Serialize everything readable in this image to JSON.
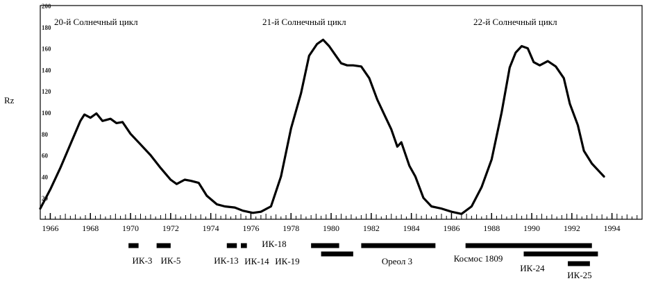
{
  "chart_data": {
    "type": "line",
    "title": "",
    "xlabel": "",
    "ylabel": "Rz",
    "xlim": [
      1965.5,
      1995.5
    ],
    "ylim": [
      0,
      200
    ],
    "grid": false,
    "x_ticks": [
      1966,
      1968,
      1970,
      1972,
      1974,
      1976,
      1978,
      1980,
      1982,
      1984,
      1986,
      1988,
      1990,
      1992,
      1994
    ],
    "y_ticks": [
      20,
      40,
      60,
      80,
      100,
      120,
      140,
      160,
      180,
      200
    ],
    "annotations": [
      {
        "text": "20-й Солнечный цикл",
        "x": 1967
      },
      {
        "text": "21-й Солнечный цикл",
        "x": 1977.5
      },
      {
        "text": "22-й Солнечный цикл",
        "x": 1987.5
      }
    ],
    "series": [
      {
        "points": [
          [
            1965.5,
            10
          ],
          [
            1966.0,
            28
          ],
          [
            1966.5,
            48
          ],
          [
            1967.0,
            70
          ],
          [
            1967.5,
            92
          ],
          [
            1967.7,
            98
          ],
          [
            1968.0,
            95
          ],
          [
            1968.3,
            99
          ],
          [
            1968.6,
            92
          ],
          [
            1969.0,
            94
          ],
          [
            1969.3,
            90
          ],
          [
            1969.6,
            91
          ],
          [
            1970.0,
            80
          ],
          [
            1970.5,
            70
          ],
          [
            1971.0,
            60
          ],
          [
            1971.5,
            48
          ],
          [
            1972.0,
            37
          ],
          [
            1972.3,
            33
          ],
          [
            1972.7,
            37
          ],
          [
            1973.0,
            36
          ],
          [
            1973.4,
            34
          ],
          [
            1973.8,
            22
          ],
          [
            1974.3,
            14
          ],
          [
            1974.7,
            12
          ],
          [
            1975.2,
            11
          ],
          [
            1975.6,
            8
          ],
          [
            1976.1,
            6
          ],
          [
            1976.5,
            7
          ],
          [
            1977.0,
            12
          ],
          [
            1977.5,
            40
          ],
          [
            1978.0,
            85
          ],
          [
            1978.5,
            118
          ],
          [
            1978.9,
            153
          ],
          [
            1979.3,
            164
          ],
          [
            1979.6,
            168
          ],
          [
            1979.9,
            162
          ],
          [
            1980.2,
            154
          ],
          [
            1980.5,
            146
          ],
          [
            1980.8,
            144
          ],
          [
            1981.1,
            144
          ],
          [
            1981.5,
            143
          ],
          [
            1981.9,
            132
          ],
          [
            1982.3,
            112
          ],
          [
            1982.7,
            96
          ],
          [
            1983.0,
            84
          ],
          [
            1983.3,
            68
          ],
          [
            1983.5,
            72
          ],
          [
            1983.9,
            50
          ],
          [
            1984.2,
            40
          ],
          [
            1984.6,
            20
          ],
          [
            1985.0,
            12
          ],
          [
            1985.5,
            10
          ],
          [
            1986.0,
            7
          ],
          [
            1986.5,
            5
          ],
          [
            1987.0,
            12
          ],
          [
            1987.5,
            30
          ],
          [
            1988.0,
            56
          ],
          [
            1988.5,
            100
          ],
          [
            1988.9,
            142
          ],
          [
            1989.2,
            156
          ],
          [
            1989.5,
            162
          ],
          [
            1989.8,
            160
          ],
          [
            1990.1,
            147
          ],
          [
            1990.4,
            144
          ],
          [
            1990.8,
            148
          ],
          [
            1991.2,
            143
          ],
          [
            1991.6,
            132
          ],
          [
            1991.9,
            108
          ],
          [
            1992.3,
            88
          ],
          [
            1992.6,
            64
          ],
          [
            1993.0,
            52
          ],
          [
            1993.4,
            44
          ],
          [
            1993.6,
            40
          ]
        ]
      }
    ],
    "missions_row1": [
      {
        "label": "ИК-3",
        "start": 1969.9,
        "end": 1970.4
      },
      {
        "label": "ИК-5",
        "start": 1971.3,
        "end": 1972.0
      },
      {
        "label": "ИК-13",
        "start": 1974.8,
        "end": 1975.3
      },
      {
        "label": "ИК-14",
        "start": 1975.5,
        "end": 1975.8
      },
      {
        "label": "ИК-18",
        "start": 1979.0,
        "end": 1980.4
      },
      {
        "label": "Ореол 3",
        "start": 1981.5,
        "end": 1985.2
      },
      {
        "label": "Космос 1809",
        "start": 1986.7,
        "end": 1993.0
      }
    ],
    "missions_row2": [
      {
        "label": "ИК-19",
        "start": 1979.5,
        "end": 1981.1
      },
      {
        "label": "ИК-24",
        "start": 1989.6,
        "end": 1993.3
      },
      {
        "label": "ИК-25",
        "start": 1991.8,
        "end": 1992.9
      }
    ]
  }
}
